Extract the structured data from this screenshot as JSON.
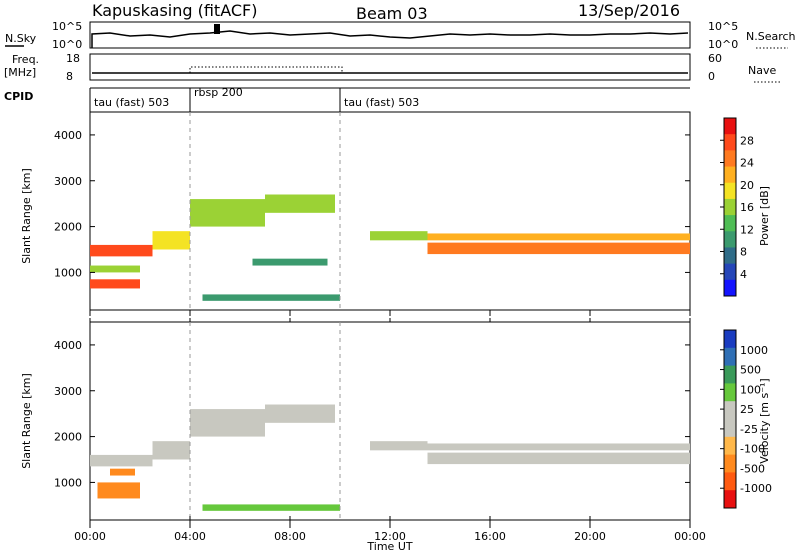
{
  "header": {
    "station": "Kapuskasing (fitACF)",
    "beam": "Beam 03",
    "date": "13/Sep/2016"
  },
  "panel_labels": {
    "nsky": "N.Sky",
    "nsearch": "N.Search",
    "freq": "Freq.",
    "freq_unit": "[MHz]",
    "nave": "Nave",
    "cpid": "CPID",
    "power_cbar": "Power [dB]",
    "velocity_cbar": "Velocity  [m s⁻¹]",
    "ylabel": "Slant Range [km]",
    "xlabel": "Time UT"
  },
  "noise_axis_ticks": {
    "left": [
      "10^5",
      "10^0"
    ],
    "right": [
      "10^5",
      "10^0"
    ]
  },
  "freq_axis_ticks": {
    "left": [
      "18",
      "8"
    ],
    "right": [
      "60",
      "0"
    ]
  },
  "cpid_segments": [
    {
      "label": "tau (fast) 503",
      "start": 0,
      "end": 4
    },
    {
      "label": "rbsp 200",
      "start": 4,
      "end": 10
    },
    {
      "label": "tau (fast) 503",
      "start": 10,
      "end": 24
    }
  ],
  "time_ticks": [
    "00:00",
    "04:00",
    "08:00",
    "12:00",
    "16:00",
    "20:00",
    "00:00"
  ],
  "range_ticks": [
    "1000",
    "2000",
    "3000",
    "4000"
  ],
  "power_colorbar": {
    "labels": [
      "28",
      "24",
      "20",
      "16",
      "12",
      "8",
      "4"
    ],
    "colors": [
      "#e81010",
      "#ff4a1c",
      "#ff7a20",
      "#ffb020",
      "#f4e324",
      "#9bd235",
      "#4fbd55",
      "#3b9a6e",
      "#2f6c88",
      "#2546b8",
      "#1414ff"
    ]
  },
  "velocity_colorbar": {
    "labels": [
      "1000",
      "500",
      "100",
      "25",
      "-25",
      "-100",
      "-500",
      "-1000"
    ],
    "colors": [
      "#1a3cc0",
      "#2f6fb5",
      "#3a9a5a",
      "#66c83c",
      "#c8c8c0",
      "#c8c8c0",
      "#ffb84a",
      "#ff8a1e",
      "#ff5a10",
      "#e81010"
    ]
  },
  "chart_data": {
    "type": "heatmap",
    "x_range_hours": [
      0,
      24
    ],
    "y_range_km": [
      180,
      4500
    ],
    "vertical_markers_hours": [
      4,
      10
    ],
    "panels": [
      {
        "name": "Power",
        "colorbar_range_db": [
          0,
          30
        ],
        "bands": [
          {
            "t": [
              0.0,
              2.5
            ],
            "r": [
              1350,
              1600
            ],
            "value": 26
          },
          {
            "t": [
              0.0,
              2.0
            ],
            "r": [
              1000,
              1150
            ],
            "value": 14
          },
          {
            "t": [
              0.0,
              2.0
            ],
            "r": [
              650,
              850
            ],
            "value": 28
          },
          {
            "t": [
              2.5,
              4.0
            ],
            "r": [
              1500,
              1900
            ],
            "value": 18
          },
          {
            "t": [
              4.0,
              7.0
            ],
            "r": [
              2000,
              2600
            ],
            "value": 16
          },
          {
            "t": [
              7.0,
              9.8
            ],
            "r": [
              2300,
              2700
            ],
            "value": 14
          },
          {
            "t": [
              6.5,
              9.5
            ],
            "r": [
              1150,
              1300
            ],
            "value": 10
          },
          {
            "t": [
              4.5,
              10.0
            ],
            "r": [
              380,
              520
            ],
            "value": 8
          },
          {
            "t": [
              11.2,
              13.5
            ],
            "r": [
              1700,
              1900
            ],
            "value": 16
          },
          {
            "t": [
              13.5,
              24.0
            ],
            "r": [
              1400,
              1650
            ],
            "value": 24
          },
          {
            "t": [
              13.5,
              24.0
            ],
            "r": [
              1700,
              1850
            ],
            "value": 20
          }
        ]
      },
      {
        "name": "Velocity",
        "colorbar_range_ms": [
          -1000,
          1000
        ],
        "bands": [
          {
            "t": [
              0.0,
              2.5
            ],
            "r": [
              1350,
              1600
            ],
            "value": 0
          },
          {
            "t": [
              0.3,
              2.0
            ],
            "r": [
              650,
              1000
            ],
            "value": -400
          },
          {
            "t": [
              0.8,
              1.8
            ],
            "r": [
              1150,
              1300
            ],
            "value": -200
          },
          {
            "t": [
              2.5,
              4.0
            ],
            "r": [
              1500,
              1900
            ],
            "value": 0
          },
          {
            "t": [
              4.0,
              7.0
            ],
            "r": [
              2000,
              2600
            ],
            "value": 0
          },
          {
            "t": [
              7.0,
              9.8
            ],
            "r": [
              2300,
              2700
            ],
            "value": 0
          },
          {
            "t": [
              4.5,
              10.0
            ],
            "r": [
              380,
              520
            ],
            "value": 50
          },
          {
            "t": [
              11.2,
              13.5
            ],
            "r": [
              1700,
              1900
            ],
            "value": 0
          },
          {
            "t": [
              13.5,
              24.0
            ],
            "r": [
              1400,
              1650
            ],
            "value": 0
          },
          {
            "t": [
              13.5,
              24.0
            ],
            "r": [
              1700,
              1850
            ],
            "value": 0
          }
        ]
      }
    ]
  }
}
